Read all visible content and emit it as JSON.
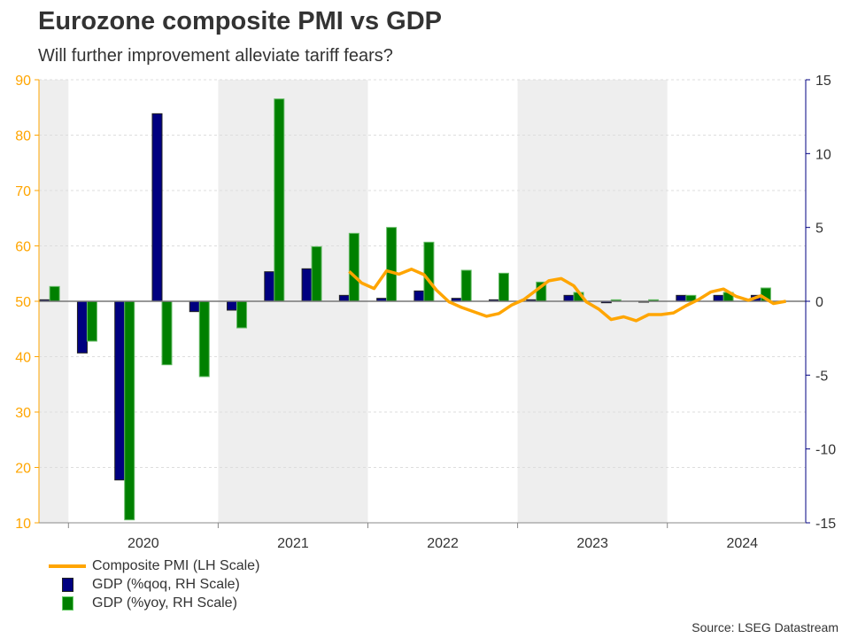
{
  "title": "Eurozone composite PMI vs GDP",
  "subtitle": "Will further improvement alleviate tariff fears?",
  "source": "Source: LSEG Datastream",
  "colors": {
    "pmi": "#FFA500",
    "gdp_qoq": "#000080",
    "gdp_yoy": "#008000",
    "left_axis": "#FFA500",
    "right_axis": "#000080",
    "shade": "#EEEEEE"
  },
  "legend": [
    {
      "label": "Composite PMI (LH Scale)",
      "symbol": "line"
    },
    {
      "label": "GDP (%qoq, RH Scale)",
      "symbol": "box"
    },
    {
      "label": "GDP (%yoy, RH Scale)",
      "symbol": "box"
    }
  ],
  "chart_data": {
    "type": "bar+line",
    "title": "Eurozone composite PMI vs GDP",
    "subtitle": "Will further improvement alleviate tariff fears?",
    "left_axis": {
      "range": [
        10,
        90
      ],
      "ticks": [
        "10",
        "20",
        "30",
        "40",
        "50",
        "60",
        "70",
        "80",
        "90"
      ]
    },
    "right_axis": {
      "range": [
        -15,
        15
      ],
      "ticks": [
        "-15",
        "-10",
        "-5",
        "0",
        "5",
        "10",
        "15"
      ]
    },
    "x_ticks": [
      "2020",
      "2021",
      "2022",
      "2023",
      "2024"
    ],
    "shaded_years": [
      2019,
      2021,
      2023
    ],
    "grid": true,
    "legend_position": "bottom-left",
    "quarters": [
      "2019Q4",
      "2020Q1",
      "2020Q2",
      "2020Q3",
      "2020Q4",
      "2021Q1",
      "2021Q2",
      "2021Q3",
      "2021Q4",
      "2022Q1",
      "2022Q2",
      "2022Q3",
      "2022Q4",
      "2023Q1",
      "2023Q2",
      "2023Q3",
      "2023Q4",
      "2024Q1",
      "2024Q2",
      "2024Q3"
    ],
    "series": [
      {
        "name": "GDP (%qoq, RH Scale)",
        "axis": "right",
        "type": "bar",
        "values": [
          0.1,
          -3.5,
          -12.1,
          12.7,
          -0.7,
          -0.6,
          2.0,
          2.2,
          0.4,
          0.2,
          0.7,
          0.2,
          0.1,
          0.1,
          0.4,
          -0.1,
          0.0,
          0.4,
          0.4,
          0.4
        ]
      },
      {
        "name": "GDP (%yoy, RH Scale)",
        "axis": "right",
        "type": "bar",
        "values": [
          1.0,
          -2.7,
          -14.8,
          -4.3,
          -5.1,
          -1.8,
          13.7,
          3.7,
          4.6,
          5.0,
          4.0,
          2.1,
          1.9,
          1.3,
          0.6,
          0.1,
          0.1,
          0.4,
          0.6,
          0.9
        ]
      },
      {
        "name": "Composite PMI (LH Scale)",
        "axis": "left",
        "type": "line",
        "start": "2021-11",
        "values": [
          55.4,
          53.3,
          52.3,
          55.5,
          54.9,
          55.8,
          54.8,
          52.0,
          49.9,
          48.9,
          48.1,
          47.3,
          47.8,
          49.3,
          50.3,
          52.0,
          53.7,
          54.1,
          52.8,
          49.9,
          48.6,
          46.7,
          47.2,
          46.5,
          47.6,
          47.6,
          47.9,
          49.2,
          50.3,
          51.7,
          52.2,
          50.9,
          50.2,
          51.0,
          49.6,
          50.0
        ]
      }
    ]
  }
}
